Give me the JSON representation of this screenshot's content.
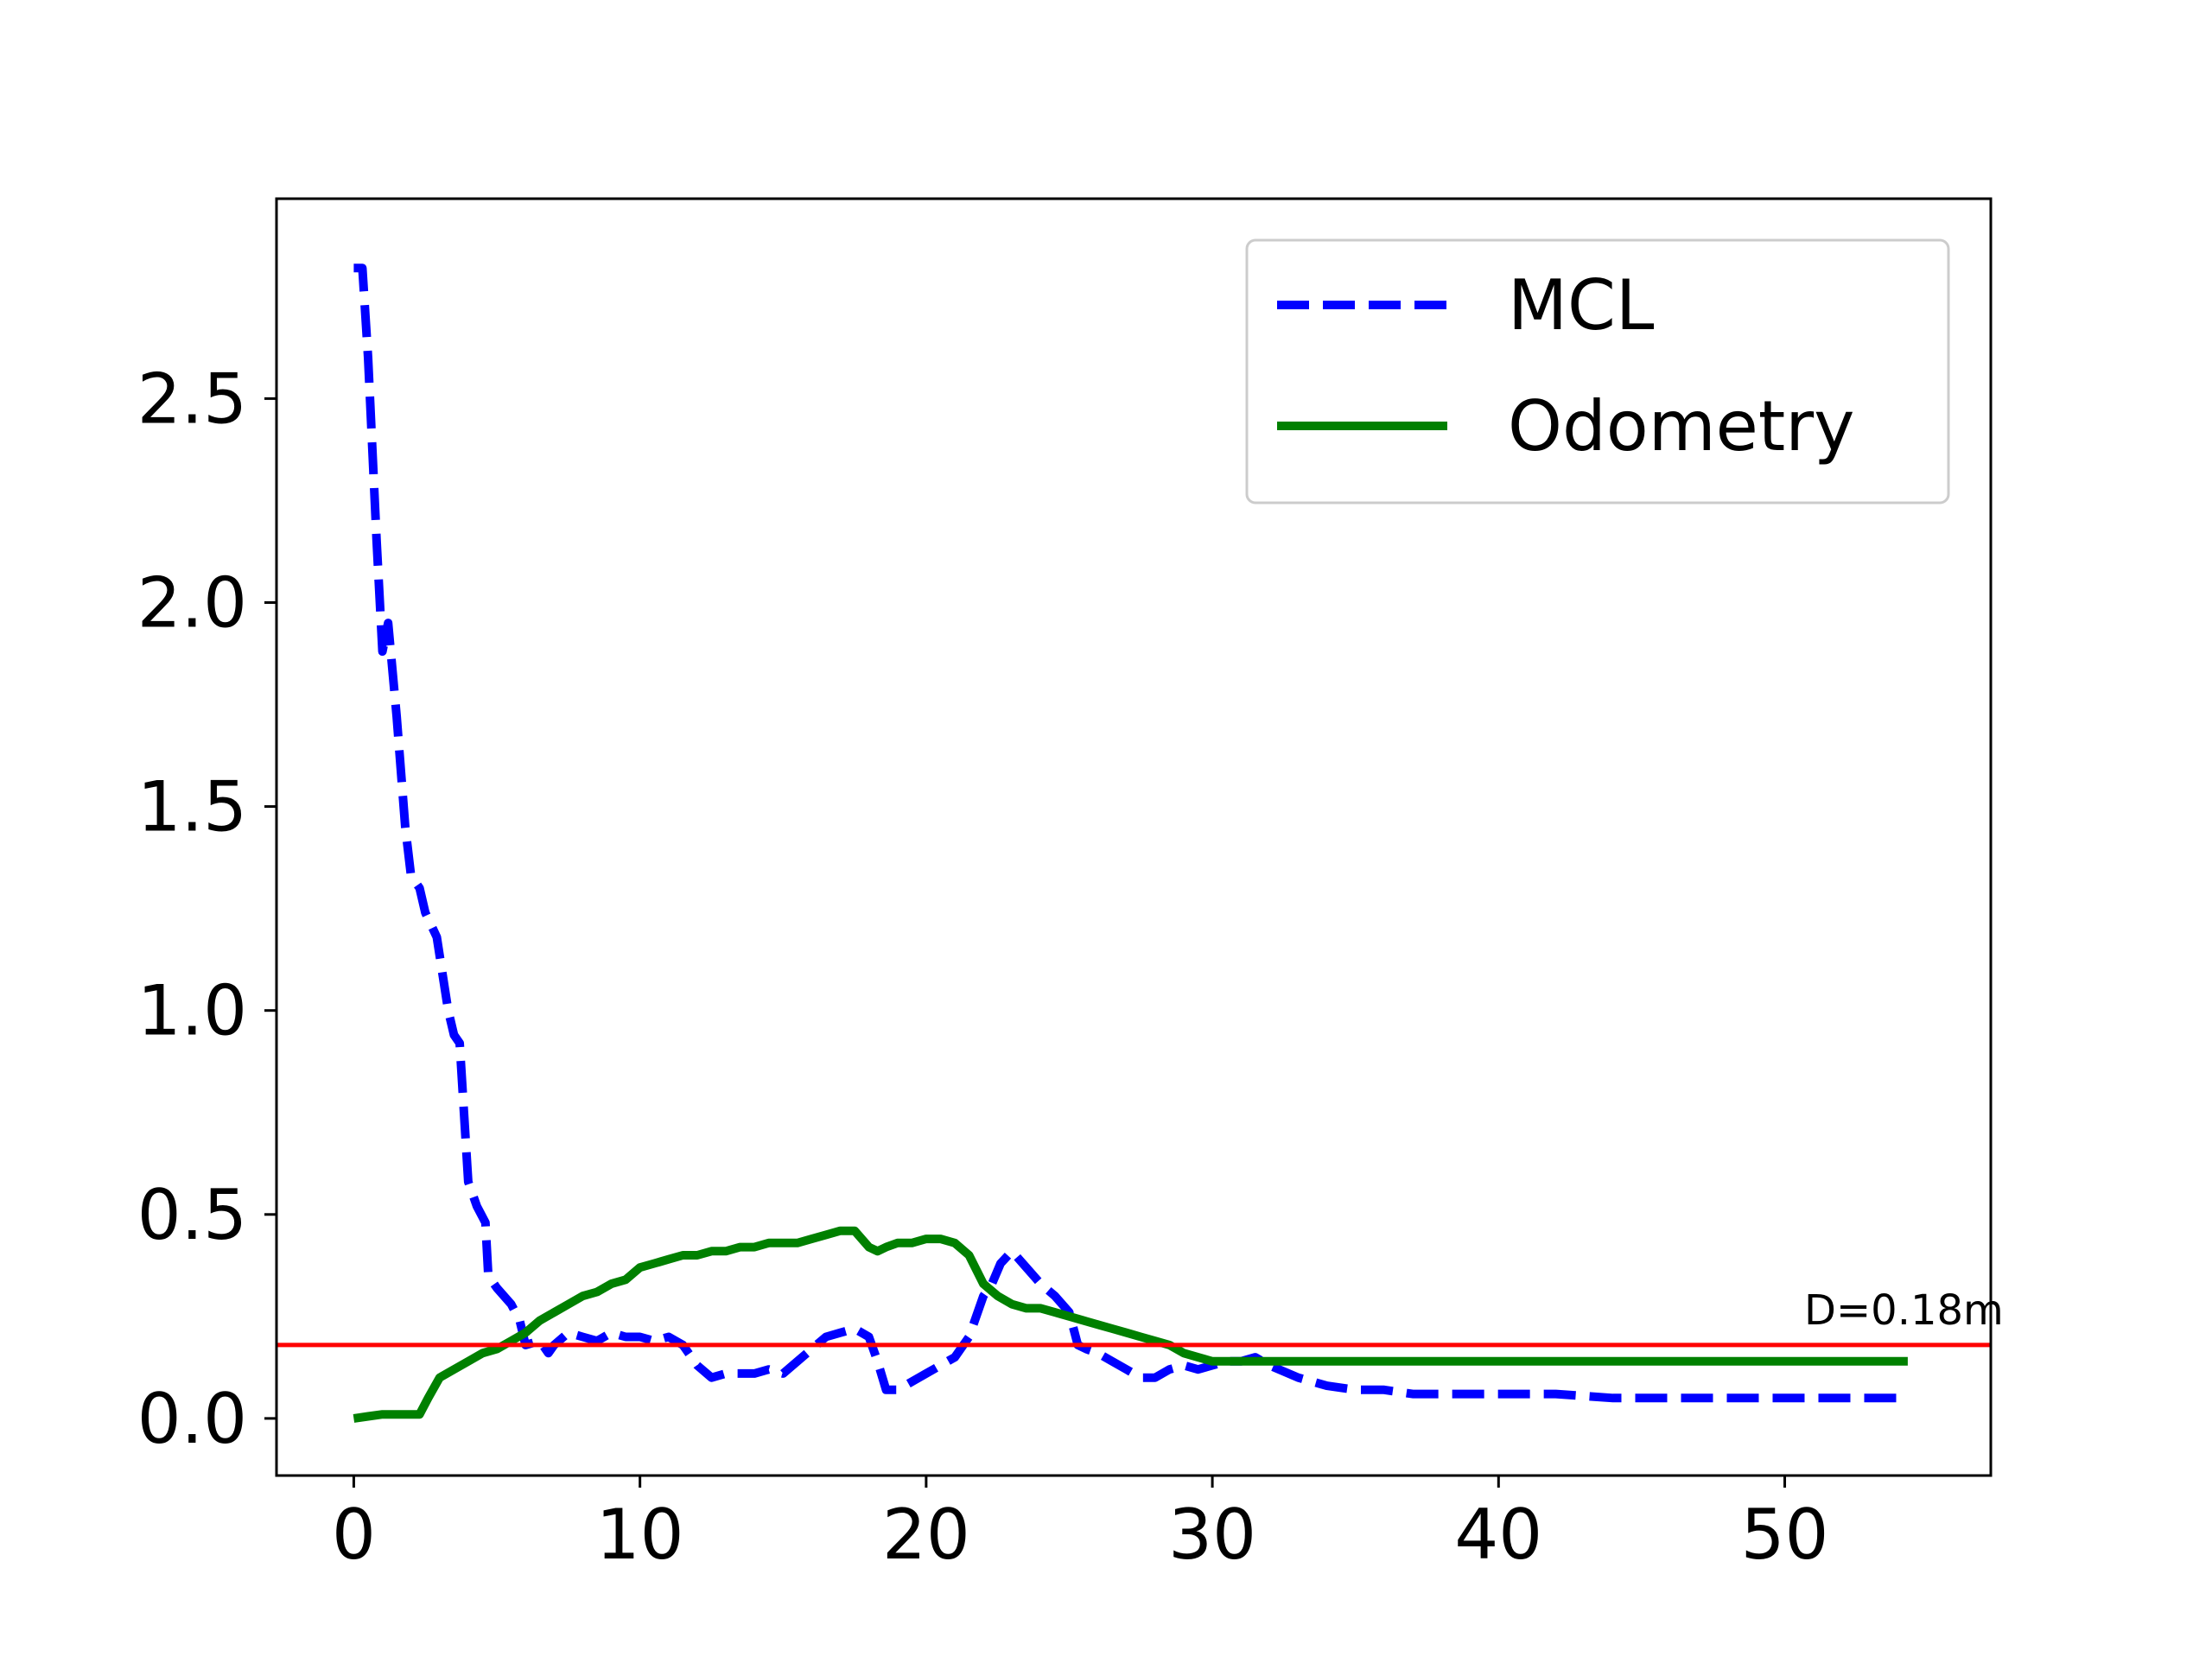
{
  "chart_data": {
    "type": "line",
    "title": "",
    "xlabel": "",
    "ylabel": "",
    "xlim": [
      -2.7,
      57.2
    ],
    "ylim": [
      -0.14,
      2.99
    ],
    "xticks": [
      0,
      10,
      20,
      30,
      40,
      50
    ],
    "xtick_labels": [
      "0",
      "10",
      "20",
      "30",
      "40",
      "50"
    ],
    "yticks": [
      0.0,
      0.5,
      1.0,
      1.5,
      2.0,
      2.5
    ],
    "ytick_labels": [
      "0.0",
      "0.5",
      "1.0",
      "1.5",
      "2.0",
      "2.5"
    ],
    "legend": {
      "position": "top-right",
      "entries": [
        {
          "label": "MCL",
          "series": "mcl"
        },
        {
          "label": "Odometry",
          "series": "odometry"
        }
      ]
    },
    "series": [
      {
        "id": "mcl",
        "name": "MCL",
        "color": "#0000ff",
        "style": "dashed",
        "x": [
          0,
          0.3,
          0.5,
          0.7,
          0.8,
          1.0,
          1.2,
          1.5,
          1.8,
          2.0,
          2.3,
          2.5,
          2.9,
          3.3,
          3.5,
          3.7,
          4.0,
          4.3,
          4.6,
          4.7,
          5.0,
          5.5,
          5.8,
          6.0,
          6.5,
          6.8,
          7.0,
          7.5,
          8.0,
          8.5,
          9.0,
          9.5,
          10.0,
          10.5,
          11.0,
          11.5,
          12.0,
          12.5,
          13.0,
          13.5,
          14.0,
          14.5,
          15.0,
          15.5,
          16.0,
          16.5,
          17.0,
          17.5,
          18.0,
          18.3,
          18.6,
          19.0,
          19.5,
          20.0,
          20.5,
          21.0,
          21.5,
          22.0,
          22.3,
          22.6,
          23.0,
          23.5,
          24.0,
          24.5,
          25.0,
          25.3,
          25.6,
          26.0,
          26.5,
          27.0,
          27.5,
          28.0,
          28.5,
          29.0,
          29.5,
          30.0,
          30.5,
          31.0,
          31.5,
          32.0,
          33.0,
          34.0,
          35.0,
          36.0,
          37.0,
          38.0,
          40.0,
          42.0,
          44.0,
          46.0,
          48.0,
          50.0,
          52.0,
          54.3
        ],
        "y": [
          2.82,
          2.82,
          2.6,
          2.3,
          2.15,
          1.88,
          1.95,
          1.72,
          1.45,
          1.33,
          1.3,
          1.24,
          1.18,
          1.0,
          0.94,
          0.92,
          0.58,
          0.52,
          0.48,
          0.35,
          0.32,
          0.28,
          0.24,
          0.18,
          0.19,
          0.16,
          0.18,
          0.21,
          0.2,
          0.19,
          0.21,
          0.2,
          0.2,
          0.19,
          0.2,
          0.18,
          0.13,
          0.1,
          0.11,
          0.11,
          0.11,
          0.12,
          0.11,
          0.14,
          0.17,
          0.2,
          0.21,
          0.22,
          0.2,
          0.14,
          0.07,
          0.07,
          0.09,
          0.11,
          0.13,
          0.15,
          0.2,
          0.3,
          0.33,
          0.38,
          0.41,
          0.37,
          0.33,
          0.3,
          0.26,
          0.18,
          0.17,
          0.16,
          0.14,
          0.12,
          0.1,
          0.1,
          0.12,
          0.13,
          0.12,
          0.13,
          0.14,
          0.14,
          0.15,
          0.13,
          0.1,
          0.08,
          0.07,
          0.07,
          0.06,
          0.06,
          0.06,
          0.06,
          0.05,
          0.05,
          0.05,
          0.05,
          0.05,
          0.05
        ]
      },
      {
        "id": "odometry",
        "name": "Odometry",
        "color": "#008000",
        "style": "solid",
        "x": [
          0,
          0.5,
          1.0,
          1.5,
          2.0,
          2.3,
          2.6,
          3.0,
          3.5,
          4.0,
          4.5,
          5.0,
          5.5,
          6.0,
          6.5,
          7.0,
          7.5,
          8.0,
          8.5,
          9.0,
          9.5,
          10.0,
          10.5,
          11.0,
          11.5,
          12.0,
          12.5,
          13.0,
          13.5,
          14.0,
          14.5,
          15.0,
          15.5,
          16.0,
          16.5,
          17.0,
          17.5,
          18.0,
          18.3,
          18.6,
          19.0,
          19.5,
          20.0,
          20.5,
          21.0,
          21.5,
          22.0,
          22.5,
          23.0,
          23.5,
          24.0,
          24.5,
          25.0,
          25.5,
          26.0,
          26.5,
          27.0,
          27.5,
          28.0,
          28.5,
          29.0,
          29.5,
          30.0,
          31.0,
          32.0,
          33.0,
          35.0,
          40.0,
          45.0,
          50.0,
          54.3
        ],
        "y": [
          0.0,
          0.005,
          0.01,
          0.01,
          0.01,
          0.01,
          0.05,
          0.1,
          0.12,
          0.14,
          0.16,
          0.17,
          0.19,
          0.21,
          0.24,
          0.26,
          0.28,
          0.3,
          0.31,
          0.33,
          0.34,
          0.37,
          0.38,
          0.39,
          0.4,
          0.4,
          0.41,
          0.41,
          0.42,
          0.42,
          0.43,
          0.43,
          0.43,
          0.44,
          0.45,
          0.46,
          0.46,
          0.42,
          0.41,
          0.42,
          0.43,
          0.43,
          0.44,
          0.44,
          0.43,
          0.4,
          0.33,
          0.3,
          0.28,
          0.27,
          0.27,
          0.26,
          0.25,
          0.24,
          0.23,
          0.22,
          0.21,
          0.2,
          0.19,
          0.18,
          0.16,
          0.15,
          0.14,
          0.14,
          0.14,
          0.14,
          0.14,
          0.14,
          0.14,
          0.14,
          0.14
        ]
      }
    ],
    "reference_line": {
      "y": 0.18,
      "color": "#ff0000",
      "label": "D=0.18m"
    }
  }
}
